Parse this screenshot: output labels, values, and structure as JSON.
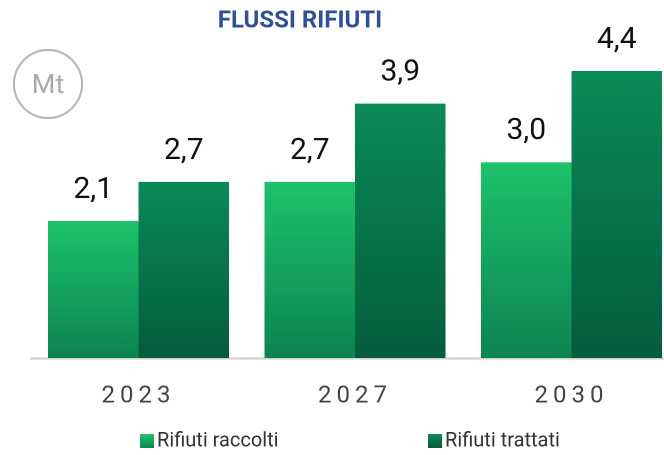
{
  "chart_data": {
    "type": "bar",
    "title": "FLUSSI RIFIUTI",
    "unit": "Mt",
    "categories": [
      "2023",
      "2027",
      "2030"
    ],
    "series": [
      {
        "name": "Rifiuti raccolti",
        "color": "#1cc26c",
        "gradient": [
          "#1cc26c",
          "#0d8450"
        ],
        "values": [
          2.1,
          2.7,
          3.0
        ],
        "value_labels": [
          "2,1",
          "2,7",
          "3,0"
        ]
      },
      {
        "name": "Rifiuti trattati",
        "color": "#0a8a58",
        "gradient": [
          "#0a8a58",
          "#045c3c"
        ],
        "values": [
          2.7,
          3.9,
          4.4
        ],
        "value_labels": [
          "2,7",
          "3,9",
          "4,4"
        ]
      }
    ],
    "ylim": [
      0,
      4.4
    ]
  }
}
